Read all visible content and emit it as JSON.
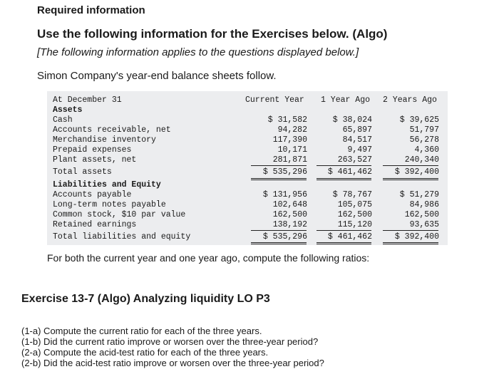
{
  "header": {
    "required": "Required information",
    "use_following": "Use the following information for the Exercises below. (Algo)",
    "applies": "[The following information applies to the questions displayed below.]",
    "intro": "Simon Company's year-end balance sheets follow."
  },
  "balance_sheet": {
    "col_label": "At December 31",
    "columns": [
      "Current Year",
      "1 Year Ago",
      "2 Years Ago"
    ],
    "assets_heading": "Assets",
    "assets": [
      {
        "label": "Cash",
        "values": [
          "$ 31,582",
          "$ 38,024",
          "$ 39,625"
        ]
      },
      {
        "label": "Accounts receivable, net",
        "values": [
          "94,282",
          "65,897",
          "51,797"
        ]
      },
      {
        "label": "Merchandise inventory",
        "values": [
          "117,390",
          "84,517",
          "56,278"
        ]
      },
      {
        "label": "Prepaid expenses",
        "values": [
          "10,171",
          "9,497",
          "4,360"
        ]
      },
      {
        "label": "Plant assets, net",
        "values": [
          "281,871",
          "263,527",
          "240,340"
        ]
      }
    ],
    "total_assets": {
      "label": "Total assets",
      "values": [
        "$ 535,296",
        "$ 461,462",
        "$ 392,400"
      ]
    },
    "liab_heading": "Liabilities and Equity",
    "liabilities": [
      {
        "label": "Accounts payable",
        "values": [
          "$ 131,956",
          "$ 78,767",
          "$ 51,279"
        ]
      },
      {
        "label": "Long-term notes payable",
        "values": [
          "102,648",
          "105,075",
          "84,986"
        ]
      },
      {
        "label": "Common stock, $10 par value",
        "values": [
          "162,500",
          "162,500",
          "162,500"
        ]
      },
      {
        "label": "Retained earnings",
        "values": [
          "138,192",
          "115,120",
          "93,635"
        ]
      }
    ],
    "total_liab": {
      "label": "Total liabilities and equity",
      "values": [
        "$ 535,296",
        "$ 461,462",
        "$ 392,400"
      ]
    }
  },
  "compute_text": "For both the current year and one year ago, compute the following ratios:",
  "exercise": {
    "title": "Exercise 13-7 (Algo) Analyzing liquidity LO P3",
    "questions": [
      "(1-a) Compute the current ratio for each of the three years.",
      "(1-b) Did the current ratio improve or worsen over the three-year period?",
      "(2-a) Compute the acid-test ratio for each of the three years.",
      "(2-b) Did the acid-test ratio improve or worsen over the three-year period?"
    ]
  }
}
